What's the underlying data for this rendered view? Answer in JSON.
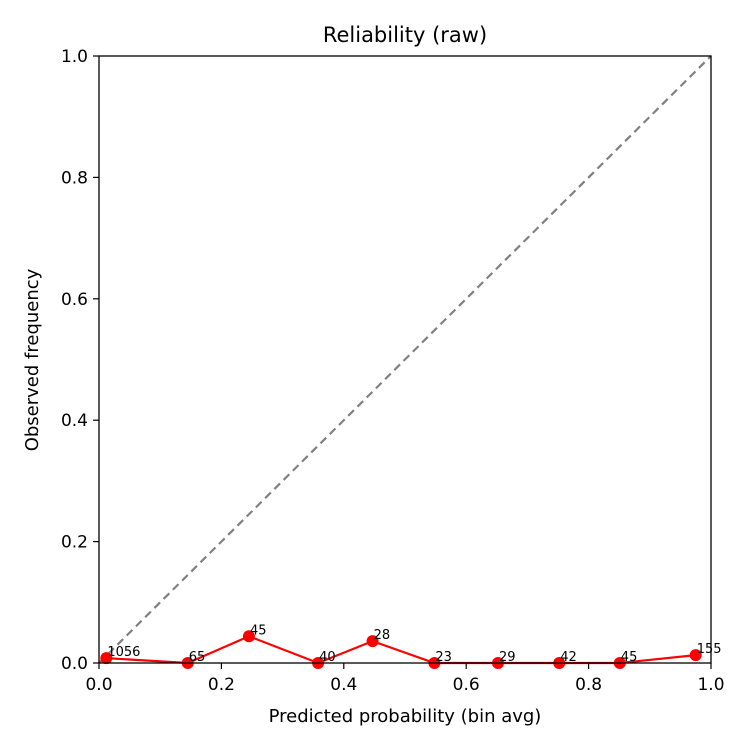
{
  "chart_data": {
    "type": "line",
    "title": "Reliability (raw)",
    "xlabel": "Predicted probability (bin avg)",
    "ylabel": "Observed frequency",
    "xlim": [
      0.0,
      1.0
    ],
    "ylim": [
      0.0,
      1.0
    ],
    "xticks": [
      "0.0",
      "0.2",
      "0.4",
      "0.6",
      "0.8",
      "1.0"
    ],
    "yticks": [
      "0.0",
      "0.2",
      "0.4",
      "0.6",
      "0.8",
      "1.0"
    ],
    "grid": false,
    "reference_line": {
      "style": "dashed",
      "color": "#808080",
      "from": [
        0,
        0
      ],
      "to": [
        1,
        1
      ]
    },
    "series": [
      {
        "color": "#ff0000",
        "x": [
          0.012,
          0.145,
          0.245,
          0.358,
          0.447,
          0.548,
          0.652,
          0.752,
          0.851,
          0.975
        ],
        "y": [
          0.008,
          0.0,
          0.044,
          0.0,
          0.036,
          0.0,
          0.0,
          0.0,
          0.0,
          0.013
        ],
        "point_labels": [
          "1056",
          "65",
          "45",
          "40",
          "28",
          "23",
          "29",
          "42",
          "45",
          "155"
        ]
      }
    ]
  }
}
